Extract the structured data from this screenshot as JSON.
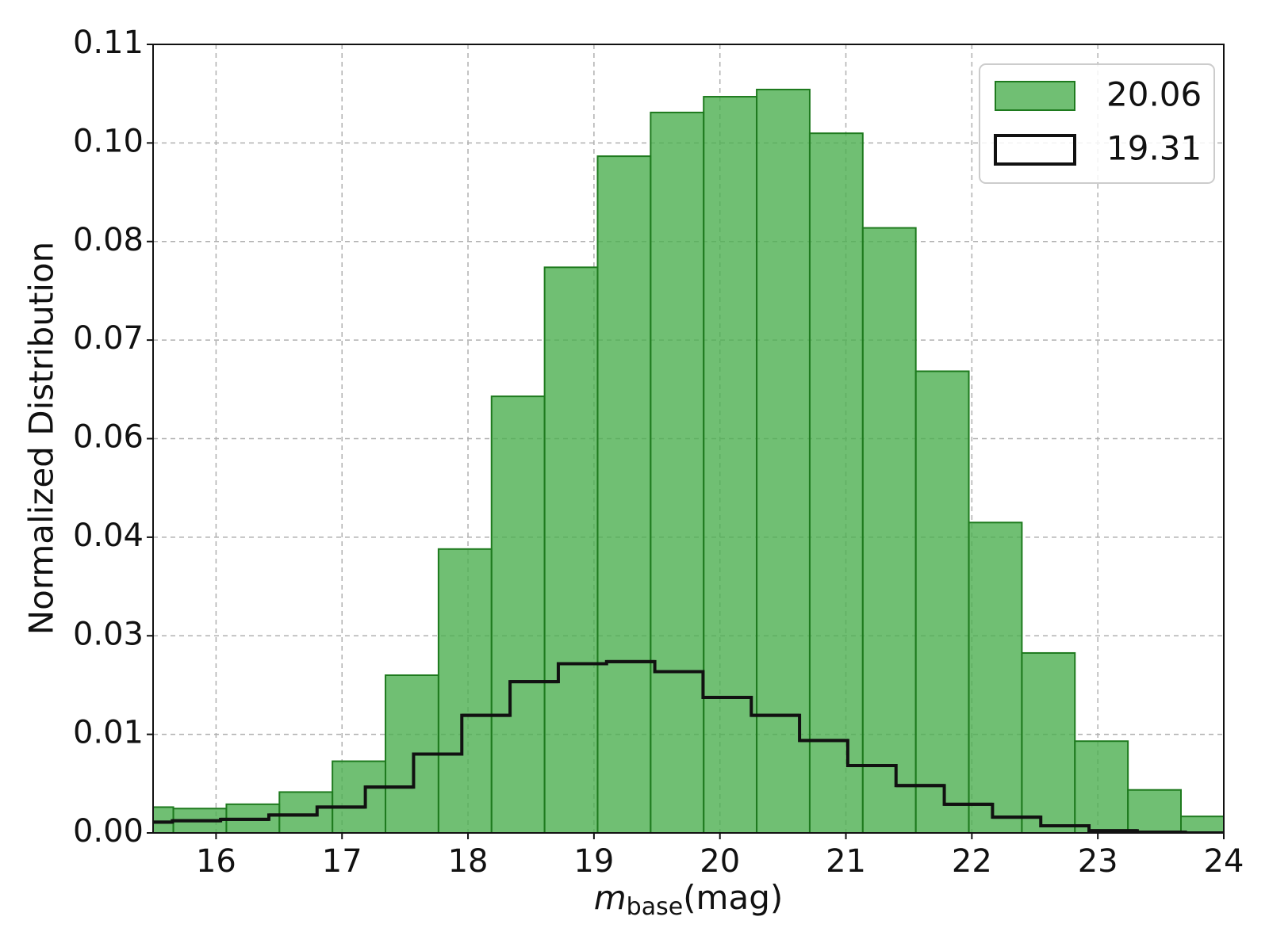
{
  "chart_data": {
    "type": "histogram",
    "xlabel": {
      "symbol": "m",
      "subscript": "base",
      "unit": "(mag)"
    },
    "ylabel": "Normalized Distribution",
    "xlim": [
      15.5,
      24
    ],
    "xticks": [
      16,
      17,
      18,
      19,
      20,
      21,
      22,
      23,
      24
    ],
    "ylim": [
      0,
      0.11
    ],
    "yticks": [
      {
        "value": 0,
        "label": "0.00"
      },
      {
        "value": 0.01375,
        "label": "0.01"
      },
      {
        "value": 0.0275,
        "label": "0.03"
      },
      {
        "value": 0.04125,
        "label": "0.04"
      },
      {
        "value": 0.055,
        "label": "0.06"
      },
      {
        "value": 0.06875,
        "label": "0.07"
      },
      {
        "value": 0.0825,
        "label": "0.08"
      },
      {
        "value": 0.09625,
        "label": "0.10"
      },
      0.11
    ],
    "grid": true,
    "legend": "upper right",
    "series": [
      {
        "name": "20.06",
        "style": "filled",
        "color": "#4caf50",
        "edgecolor": "#1e7a1e",
        "bins": [
          15.24,
          15.661,
          16.082,
          16.503,
          16.924,
          17.345,
          17.766,
          18.187,
          18.608,
          19.029,
          19.45,
          19.871,
          20.292,
          20.713,
          21.134,
          21.555,
          21.976,
          22.397,
          22.818,
          23.239,
          23.66,
          24.081
        ],
        "values": [
          0.0036,
          0.0034,
          0.004,
          0.0057,
          0.01,
          0.022,
          0.0396,
          0.0609,
          0.0789,
          0.0944,
          0.1005,
          0.1027,
          0.1037,
          0.0976,
          0.0844,
          0.0644,
          0.0433,
          0.0251,
          0.0128,
          0.006,
          0.0023
        ]
      },
      {
        "name": "19.31",
        "style": "step",
        "color": "#111111",
        "bins": [
          15.27,
          15.653,
          16.036,
          16.419,
          16.802,
          17.185,
          17.568,
          17.951,
          18.334,
          18.717,
          19.1,
          19.483,
          19.866,
          20.249,
          20.632,
          21.015,
          21.398,
          21.781,
          22.164,
          22.547,
          22.93,
          23.313,
          23.696,
          24.079
        ],
        "values": [
          0.0015,
          0.0017,
          0.0019,
          0.0025,
          0.0036,
          0.0064,
          0.011,
          0.0164,
          0.0211,
          0.0236,
          0.0239,
          0.0225,
          0.0189,
          0.0164,
          0.0129,
          0.0094,
          0.0066,
          0.004,
          0.0022,
          0.001,
          0.0003,
          0.0001,
          0
        ]
      }
    ]
  }
}
